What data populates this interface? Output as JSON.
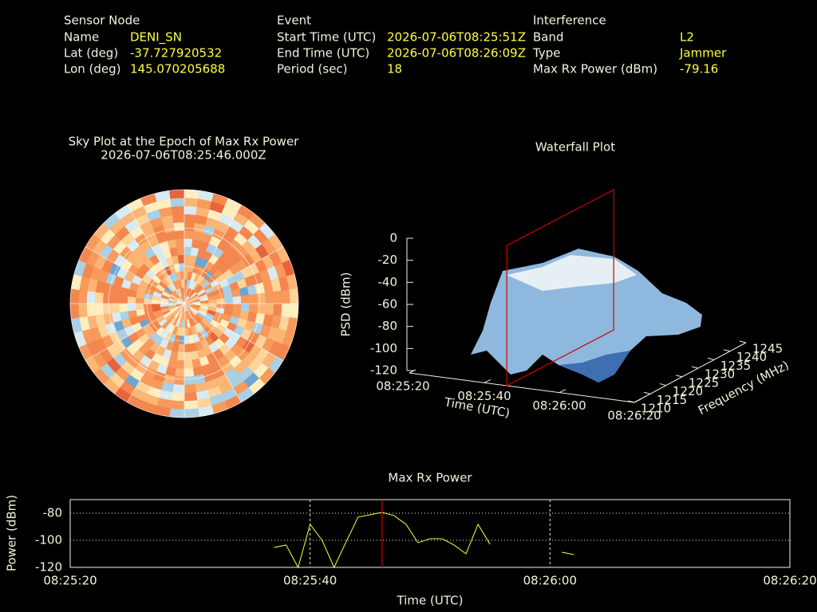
{
  "header": {
    "sensor": {
      "title": "Sensor Node",
      "rows": [
        [
          "Name",
          "DENI_SN"
        ],
        [
          "Lat (deg)",
          "-37.727920532"
        ],
        [
          "Lon (deg)",
          "145.070205688"
        ]
      ]
    },
    "event": {
      "title": "Event",
      "rows": [
        [
          "Start Time (UTC)",
          "2026-07-06T08:25:51Z"
        ],
        [
          "End Time (UTC)",
          "2026-07-06T08:26:09Z"
        ],
        [
          "Period (sec)",
          "18"
        ]
      ]
    },
    "interference": {
      "title": "Interference",
      "rows": [
        [
          "Band",
          "L2"
        ],
        [
          "Type",
          "Jammer"
        ],
        [
          "Max Rx Power (dBm)",
          "-79.16"
        ]
      ]
    }
  },
  "chart_data": [
    {
      "type": "polar",
      "title": "Sky Plot at the Epoch of Max Rx Power",
      "subtitle": "2026-07-06T08:25:46.000Z"
    },
    {
      "type": "waterfall",
      "title": "Waterfall Plot",
      "zlabel": "PSD (dBm)",
      "xlabel": "Time (UTC)",
      "ylabel": "Frequency (MHz)",
      "zlim": [
        -120,
        0
      ],
      "zticks": [
        0,
        -20,
        -40,
        -60,
        -80,
        -100,
        -120
      ],
      "xlim": [
        "08:25:20",
        "08:26:20"
      ],
      "xticks": [
        "08:25:20",
        "08:25:40",
        "08:26:00",
        "08:26:20"
      ],
      "ylim": [
        1210,
        1245
      ],
      "yticks": [
        1210,
        1215,
        1220,
        1225,
        1230,
        1235,
        1240,
        1245
      ],
      "marker": "08:25:46",
      "marker_color": "#d00000"
    },
    {
      "type": "line",
      "title": "Max Rx Power",
      "xlabel": "Time (UTC)",
      "ylabel": "Power (dBm)",
      "x": [
        "08:25:37",
        "08:25:38",
        "08:25:39",
        "08:25:40",
        "08:25:41",
        "08:25:42",
        "08:25:43",
        "08:25:44",
        "08:25:45",
        "08:25:46",
        "08:25:47",
        "08:25:48",
        "08:25:49",
        "08:25:50",
        "08:25:51",
        "08:25:52",
        "08:25:53",
        "08:25:54",
        "08:25:55",
        "08:25:56",
        "08:25:57",
        "08:25:58",
        "08:25:59",
        "08:26:00",
        "08:26:01",
        "08:26:02"
      ],
      "values": [
        -105.3,
        -103.5,
        -120,
        -88.2,
        -100,
        -120,
        -101.2,
        -82.9,
        -81.2,
        -79.4,
        -81.8,
        -88.2,
        -101.8,
        -98.8,
        -98.8,
        -103.5,
        -110,
        -88.2,
        -102.9,
        null,
        null,
        null,
        null,
        null,
        -108.8,
        -110.6
      ],
      "color": "#ffff40",
      "xlim": [
        "08:25:20",
        "08:26:20"
      ],
      "xticks": [
        "08:25:20",
        "08:25:40",
        "08:26:00",
        "08:26:20"
      ],
      "ylim": [
        -120,
        -70
      ],
      "yticks": [
        -80,
        -100,
        -120
      ],
      "grid": true,
      "marker": "08:25:46",
      "marker_color": "#d00000"
    }
  ]
}
